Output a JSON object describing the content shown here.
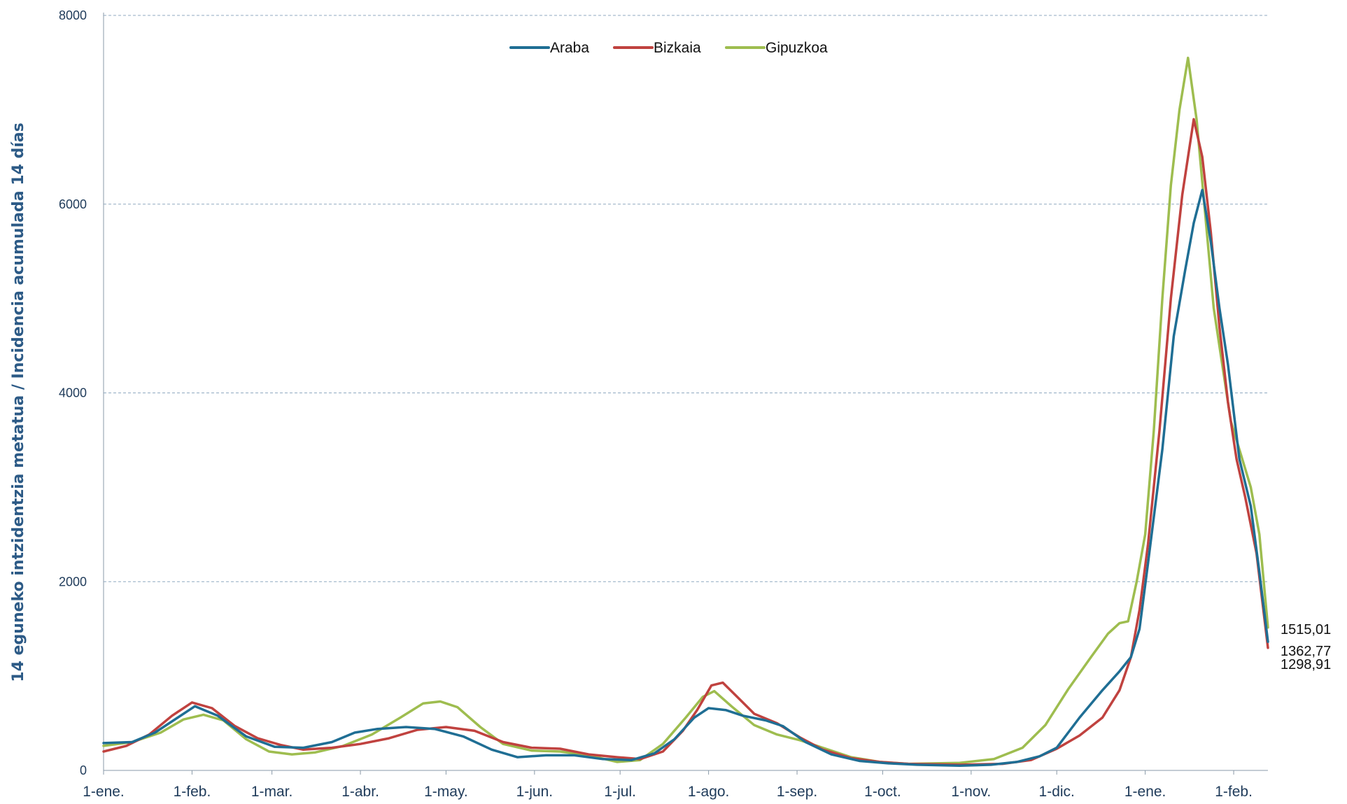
{
  "chart_data": {
    "type": "line",
    "title": "",
    "xlabel": "",
    "ylabel": "14 eguneko intzidentzia metatua / Incidencia acumulada 14 días",
    "ylim": [
      0,
      8000
    ],
    "y_ticks": [
      "0",
      "2000",
      "4000",
      "6000",
      "8000"
    ],
    "x_tick_labels": [
      "1-ene.",
      "1-feb.",
      "1-mar.",
      "1-abr.",
      "1-may.",
      "1-jun.",
      "1-jul.",
      "1-ago.",
      "1-sep.",
      "1-oct.",
      "1-nov.",
      "1-dic.",
      "1-ene.",
      "1-feb."
    ],
    "x_tick_days": [
      0,
      31,
      59,
      90,
      120,
      151,
      181,
      212,
      243,
      273,
      304,
      334,
      365,
      396
    ],
    "x_domain_days": [
      0,
      408
    ],
    "x_unit": "días desde 1-ene.",
    "grid": "horizontal dashed",
    "legend_position": "top-center",
    "series": [
      {
        "name": "Araba",
        "color": "#1f6e94",
        "end_label": "1362,77",
        "points": [
          [
            0,
            290
          ],
          [
            10,
            300
          ],
          [
            18,
            400
          ],
          [
            26,
            560
          ],
          [
            32,
            680
          ],
          [
            40,
            580
          ],
          [
            50,
            360
          ],
          [
            60,
            250
          ],
          [
            70,
            240
          ],
          [
            80,
            300
          ],
          [
            88,
            400
          ],
          [
            96,
            440
          ],
          [
            106,
            460
          ],
          [
            116,
            440
          ],
          [
            126,
            360
          ],
          [
            136,
            220
          ],
          [
            145,
            140
          ],
          [
            155,
            160
          ],
          [
            165,
            160
          ],
          [
            175,
            120
          ],
          [
            185,
            110
          ],
          [
            193,
            180
          ],
          [
            200,
            330
          ],
          [
            207,
            560
          ],
          [
            212,
            660
          ],
          [
            218,
            640
          ],
          [
            224,
            580
          ],
          [
            232,
            530
          ],
          [
            238,
            470
          ],
          [
            246,
            300
          ],
          [
            255,
            170
          ],
          [
            265,
            100
          ],
          [
            275,
            75
          ],
          [
            285,
            60
          ],
          [
            300,
            50
          ],
          [
            311,
            60
          ],
          [
            320,
            90
          ],
          [
            328,
            150
          ],
          [
            334,
            240
          ],
          [
            342,
            560
          ],
          [
            350,
            850
          ],
          [
            356,
            1050
          ],
          [
            360,
            1200
          ],
          [
            363,
            1500
          ],
          [
            366,
            2200
          ],
          [
            371,
            3400
          ],
          [
            375,
            4600
          ],
          [
            379,
            5300
          ],
          [
            382,
            5800
          ],
          [
            385,
            6150
          ],
          [
            388,
            5600
          ],
          [
            391,
            4900
          ],
          [
            394,
            4300
          ],
          [
            398,
            3300
          ],
          [
            402,
            2800
          ],
          [
            405,
            2100
          ],
          [
            408,
            1363
          ]
        ]
      },
      {
        "name": "Bizkaia",
        "color": "#c0423f",
        "end_label": "1298,91",
        "points": [
          [
            0,
            200
          ],
          [
            8,
            260
          ],
          [
            16,
            380
          ],
          [
            24,
            580
          ],
          [
            31,
            720
          ],
          [
            38,
            660
          ],
          [
            46,
            470
          ],
          [
            54,
            340
          ],
          [
            62,
            270
          ],
          [
            70,
            220
          ],
          [
            80,
            240
          ],
          [
            90,
            280
          ],
          [
            100,
            340
          ],
          [
            110,
            430
          ],
          [
            120,
            460
          ],
          [
            130,
            420
          ],
          [
            140,
            300
          ],
          [
            150,
            240
          ],
          [
            160,
            230
          ],
          [
            170,
            170
          ],
          [
            180,
            140
          ],
          [
            188,
            120
          ],
          [
            196,
            200
          ],
          [
            203,
            420
          ],
          [
            208,
            640
          ],
          [
            213,
            900
          ],
          [
            217,
            930
          ],
          [
            222,
            780
          ],
          [
            228,
            600
          ],
          [
            236,
            500
          ],
          [
            244,
            350
          ],
          [
            252,
            220
          ],
          [
            262,
            130
          ],
          [
            272,
            90
          ],
          [
            282,
            70
          ],
          [
            300,
            60
          ],
          [
            315,
            70
          ],
          [
            325,
            110
          ],
          [
            334,
            230
          ],
          [
            342,
            370
          ],
          [
            350,
            560
          ],
          [
            356,
            850
          ],
          [
            360,
            1200
          ],
          [
            363,
            1700
          ],
          [
            366,
            2400
          ],
          [
            370,
            3600
          ],
          [
            374,
            5000
          ],
          [
            378,
            6100
          ],
          [
            382,
            6900
          ],
          [
            385,
            6500
          ],
          [
            388,
            5700
          ],
          [
            391,
            4700
          ],
          [
            394,
            3900
          ],
          [
            397,
            3300
          ],
          [
            400,
            2900
          ],
          [
            404,
            2300
          ],
          [
            408,
            1299
          ]
        ]
      },
      {
        "name": "Gipuzkoa",
        "color": "#9ebd4f",
        "end_label": "1515,01",
        "points": [
          [
            0,
            260
          ],
          [
            10,
            300
          ],
          [
            20,
            400
          ],
          [
            28,
            540
          ],
          [
            35,
            590
          ],
          [
            42,
            530
          ],
          [
            50,
            330
          ],
          [
            58,
            200
          ],
          [
            66,
            170
          ],
          [
            74,
            190
          ],
          [
            84,
            260
          ],
          [
            94,
            380
          ],
          [
            104,
            560
          ],
          [
            112,
            710
          ],
          [
            118,
            730
          ],
          [
            124,
            670
          ],
          [
            132,
            460
          ],
          [
            140,
            280
          ],
          [
            150,
            210
          ],
          [
            160,
            200
          ],
          [
            170,
            160
          ],
          [
            180,
            90
          ],
          [
            188,
            110
          ],
          [
            196,
            280
          ],
          [
            204,
            560
          ],
          [
            210,
            780
          ],
          [
            214,
            840
          ],
          [
            220,
            680
          ],
          [
            228,
            480
          ],
          [
            236,
            380
          ],
          [
            244,
            320
          ],
          [
            252,
            240
          ],
          [
            262,
            140
          ],
          [
            272,
            90
          ],
          [
            282,
            70
          ],
          [
            300,
            80
          ],
          [
            312,
            120
          ],
          [
            322,
            240
          ],
          [
            330,
            480
          ],
          [
            338,
            860
          ],
          [
            346,
            1200
          ],
          [
            352,
            1450
          ],
          [
            356,
            1560
          ],
          [
            359,
            1580
          ],
          [
            362,
            2000
          ],
          [
            365,
            2500
          ],
          [
            368,
            3600
          ],
          [
            371,
            5000
          ],
          [
            374,
            6200
          ],
          [
            377,
            7000
          ],
          [
            380,
            7550
          ],
          [
            383,
            6900
          ],
          [
            386,
            5900
          ],
          [
            389,
            4900
          ],
          [
            392,
            4300
          ],
          [
            395,
            3700
          ],
          [
            398,
            3400
          ],
          [
            402,
            3000
          ],
          [
            405,
            2500
          ],
          [
            408,
            1515
          ]
        ]
      }
    ]
  }
}
